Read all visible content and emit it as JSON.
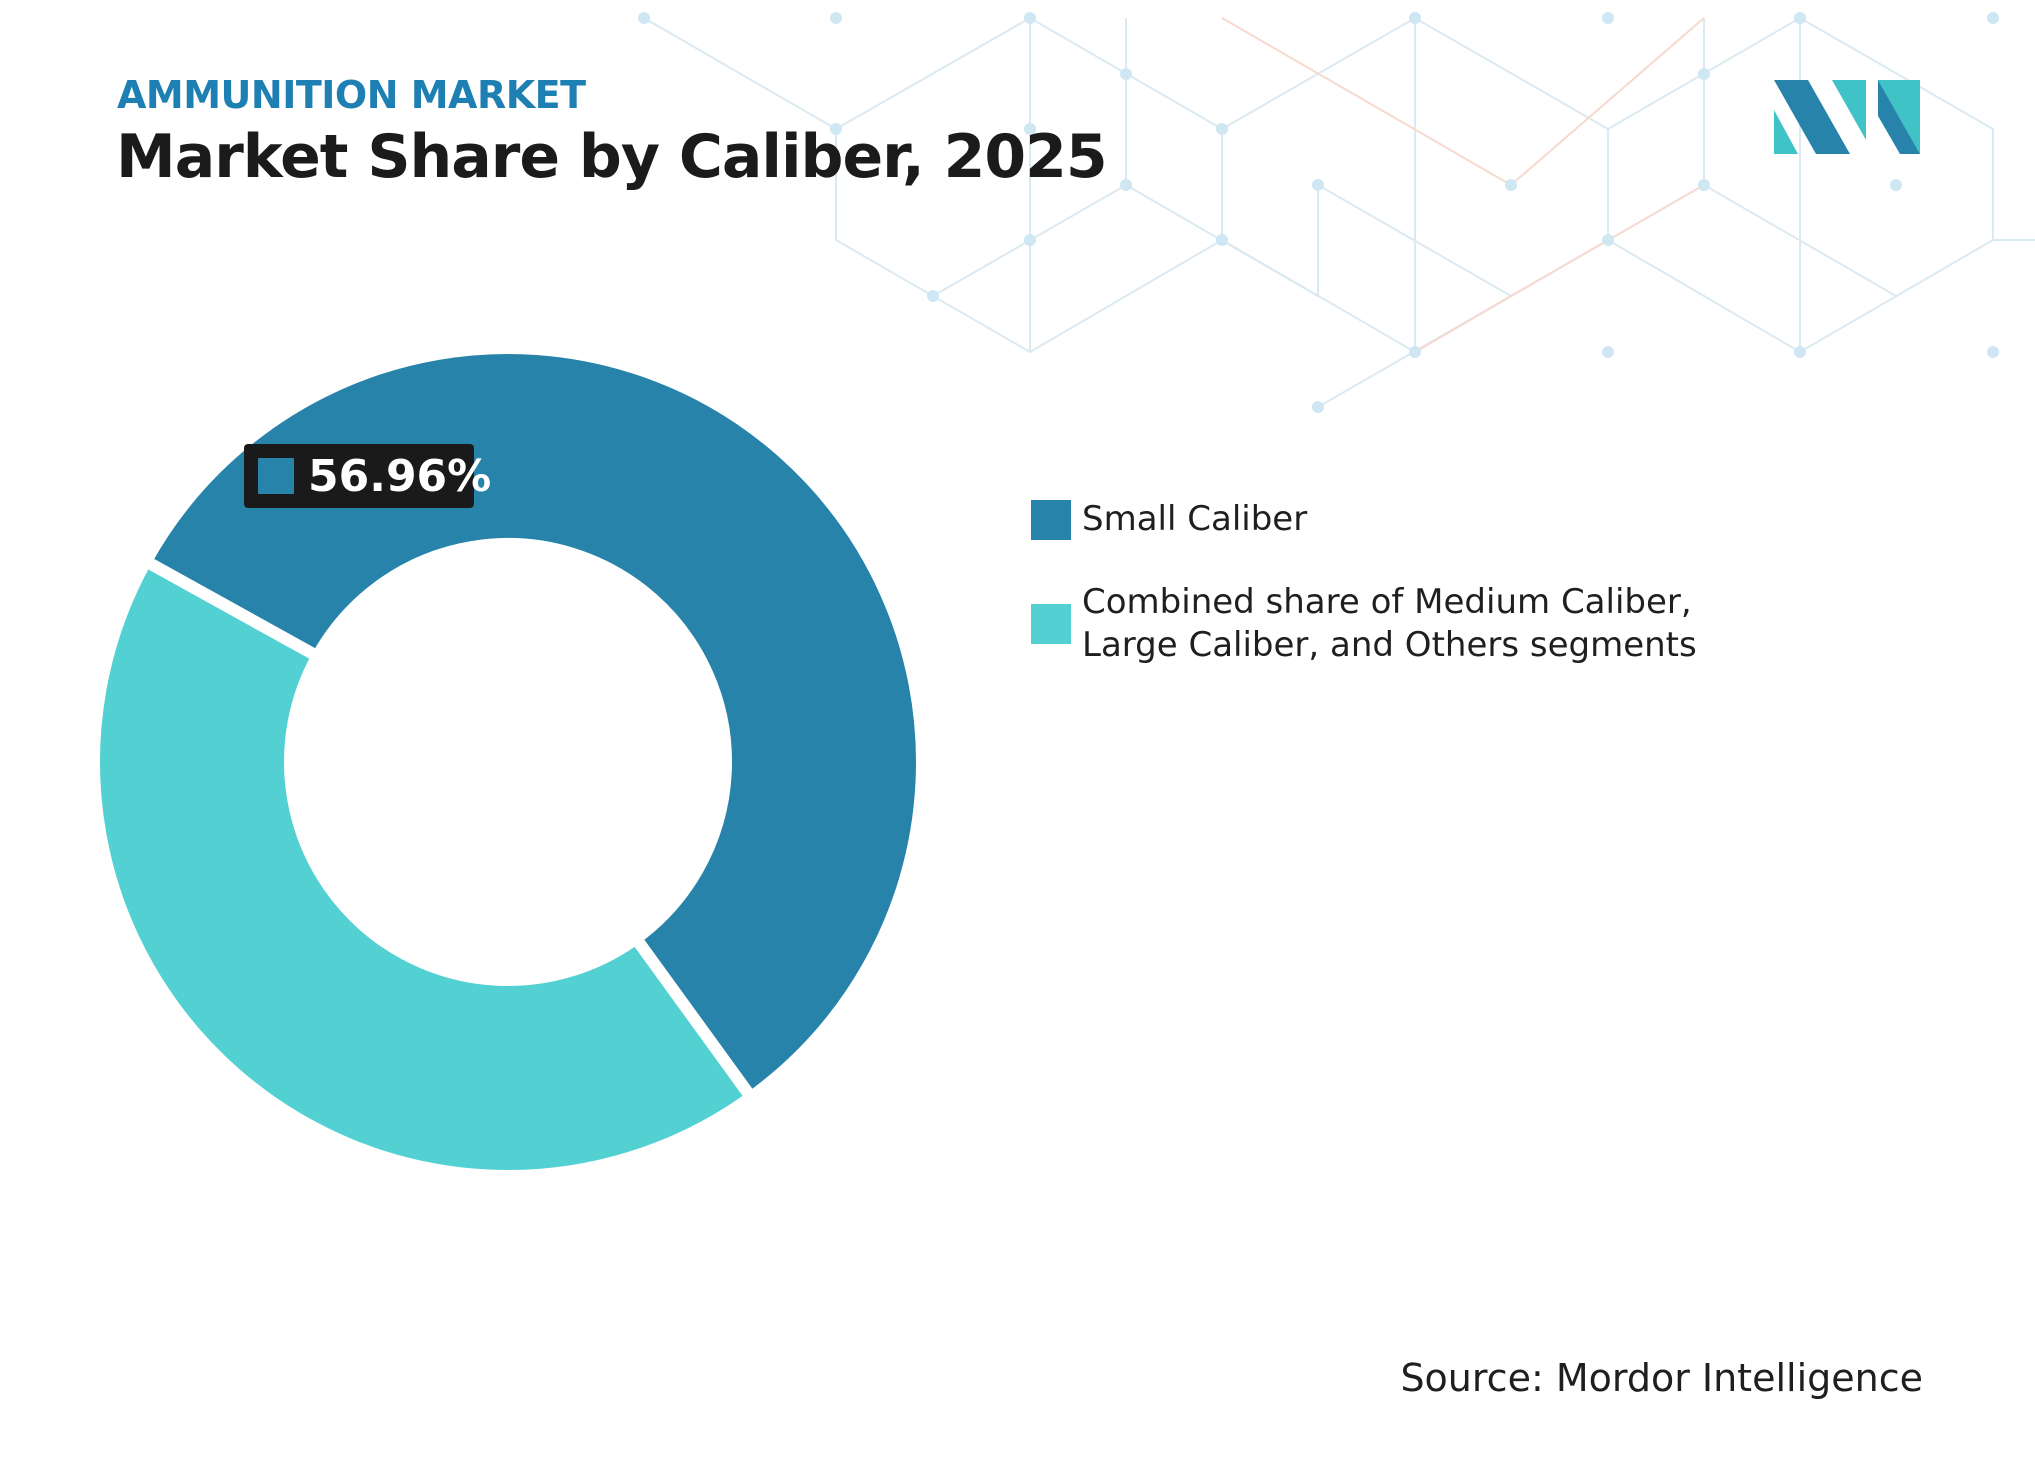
{
  "header": {
    "subtitle": "AMMUNITION MARKET",
    "title": "Market Share by Caliber, 2025"
  },
  "chart_data": {
    "type": "pie",
    "style": "donut",
    "categories": [
      "Small Caliber",
      "Combined share of Medium Caliber, Large Caliber, and Others segments"
    ],
    "values": [
      56.96,
      43.04
    ],
    "colors": [
      "#2783aa",
      "#53d1d2"
    ],
    "data_labels": [
      {
        "slice": 0,
        "text": "56.96%"
      }
    ],
    "legend": {
      "placement": "right",
      "entries": [
        "Small Caliber",
        "Combined share of Medium Caliber, Large Caliber, and Others segments"
      ]
    }
  },
  "source": "Source: Mordor Intelligence",
  "logo": {
    "icon": "mordor-intelligence-logo-icon",
    "colors": [
      "#2783aa",
      "#3fc3c6"
    ]
  },
  "colors": {
    "subtitle": "#1e7fb3",
    "title": "#1b1b1b",
    "label_box": "#1a1a1a",
    "background_pattern": "#cfe6f3"
  }
}
